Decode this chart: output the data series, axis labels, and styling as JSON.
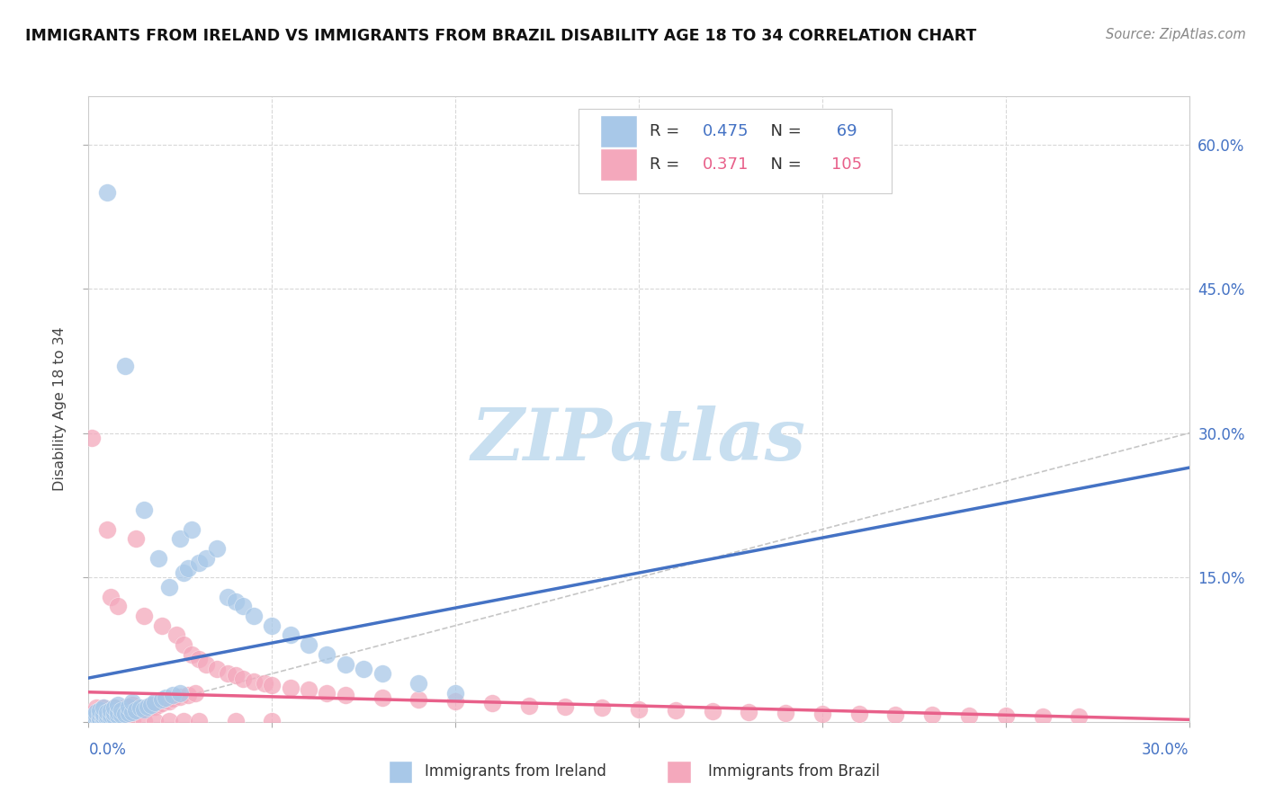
{
  "title": "IMMIGRANTS FROM IRELAND VS IMMIGRANTS FROM BRAZIL DISABILITY AGE 18 TO 34 CORRELATION CHART",
  "source": "Source: ZipAtlas.com",
  "ylabel": "Disability Age 18 to 34",
  "xlim": [
    0.0,
    0.3
  ],
  "ylim": [
    0.0,
    0.65
  ],
  "ireland_R": 0.475,
  "ireland_N": 69,
  "brazil_R": 0.371,
  "brazil_N": 105,
  "ireland_color": "#a8c8e8",
  "ireland_line_color": "#4472c4",
  "brazil_color": "#f4a8bc",
  "brazil_line_color": "#e8608a",
  "diagonal_color": "#b8b8b8",
  "grid_color": "#d8d8d8",
  "right_axis_color": "#4472c4",
  "watermark_color": "#c8dff0",
  "ireland_x": [
    0.001,
    0.001,
    0.001,
    0.002,
    0.002,
    0.002,
    0.002,
    0.003,
    0.003,
    0.003,
    0.003,
    0.004,
    0.004,
    0.004,
    0.004,
    0.005,
    0.005,
    0.005,
    0.005,
    0.006,
    0.006,
    0.006,
    0.007,
    0.007,
    0.007,
    0.008,
    0.008,
    0.008,
    0.009,
    0.009,
    0.01,
    0.01,
    0.011,
    0.011,
    0.012,
    0.012,
    0.013,
    0.014,
    0.015,
    0.015,
    0.016,
    0.017,
    0.018,
    0.019,
    0.02,
    0.021,
    0.022,
    0.023,
    0.025,
    0.025,
    0.026,
    0.027,
    0.028,
    0.03,
    0.032,
    0.035,
    0.038,
    0.04,
    0.042,
    0.045,
    0.05,
    0.055,
    0.06,
    0.065,
    0.07,
    0.075,
    0.08,
    0.09,
    0.1
  ],
  "ireland_y": [
    0.001,
    0.003,
    0.005,
    0.001,
    0.003,
    0.006,
    0.01,
    0.002,
    0.004,
    0.008,
    0.012,
    0.002,
    0.005,
    0.008,
    0.015,
    0.003,
    0.006,
    0.01,
    0.55,
    0.004,
    0.007,
    0.012,
    0.005,
    0.009,
    0.015,
    0.006,
    0.01,
    0.018,
    0.007,
    0.012,
    0.008,
    0.37,
    0.009,
    0.016,
    0.01,
    0.02,
    0.012,
    0.015,
    0.013,
    0.22,
    0.016,
    0.018,
    0.02,
    0.17,
    0.023,
    0.025,
    0.14,
    0.028,
    0.03,
    0.19,
    0.155,
    0.16,
    0.2,
    0.165,
    0.17,
    0.18,
    0.13,
    0.125,
    0.12,
    0.11,
    0.1,
    0.09,
    0.08,
    0.07,
    0.06,
    0.055,
    0.05,
    0.04,
    0.03
  ],
  "brazil_x": [
    0.001,
    0.001,
    0.001,
    0.001,
    0.002,
    0.002,
    0.002,
    0.002,
    0.002,
    0.003,
    0.003,
    0.003,
    0.003,
    0.004,
    0.004,
    0.004,
    0.004,
    0.005,
    0.005,
    0.005,
    0.005,
    0.006,
    0.006,
    0.006,
    0.007,
    0.007,
    0.007,
    0.008,
    0.008,
    0.008,
    0.009,
    0.009,
    0.01,
    0.01,
    0.011,
    0.011,
    0.012,
    0.012,
    0.013,
    0.013,
    0.014,
    0.015,
    0.015,
    0.016,
    0.017,
    0.018,
    0.019,
    0.02,
    0.02,
    0.021,
    0.022,
    0.023,
    0.024,
    0.025,
    0.026,
    0.027,
    0.028,
    0.029,
    0.03,
    0.032,
    0.035,
    0.038,
    0.04,
    0.042,
    0.045,
    0.048,
    0.05,
    0.055,
    0.06,
    0.065,
    0.07,
    0.08,
    0.09,
    0.1,
    0.11,
    0.12,
    0.13,
    0.14,
    0.15,
    0.16,
    0.17,
    0.18,
    0.19,
    0.2,
    0.21,
    0.22,
    0.23,
    0.24,
    0.25,
    0.26,
    0.27,
    0.001,
    0.002,
    0.003,
    0.005,
    0.007,
    0.009,
    0.012,
    0.015,
    0.018,
    0.022,
    0.026,
    0.03,
    0.04,
    0.05
  ],
  "brazil_y": [
    0.001,
    0.003,
    0.005,
    0.008,
    0.001,
    0.003,
    0.006,
    0.01,
    0.015,
    0.002,
    0.005,
    0.008,
    0.012,
    0.002,
    0.005,
    0.009,
    0.015,
    0.003,
    0.006,
    0.01,
    0.2,
    0.004,
    0.007,
    0.13,
    0.005,
    0.009,
    0.015,
    0.006,
    0.01,
    0.12,
    0.007,
    0.012,
    0.008,
    0.015,
    0.009,
    0.016,
    0.01,
    0.018,
    0.011,
    0.19,
    0.013,
    0.012,
    0.11,
    0.015,
    0.017,
    0.016,
    0.018,
    0.019,
    0.1,
    0.022,
    0.021,
    0.024,
    0.09,
    0.026,
    0.08,
    0.028,
    0.07,
    0.03,
    0.065,
    0.06,
    0.055,
    0.05,
    0.048,
    0.045,
    0.042,
    0.04,
    0.038,
    0.035,
    0.033,
    0.03,
    0.028,
    0.025,
    0.023,
    0.021,
    0.019,
    0.017,
    0.016,
    0.015,
    0.013,
    0.012,
    0.011,
    0.01,
    0.009,
    0.008,
    0.008,
    0.007,
    0.007,
    0.006,
    0.006,
    0.005,
    0.005,
    0.295,
    0.004,
    0.003,
    0.002,
    0.002,
    0.001,
    0.001,
    0.001,
    0.001,
    0.001,
    0.001,
    0.001,
    0.001,
    0.001
  ]
}
